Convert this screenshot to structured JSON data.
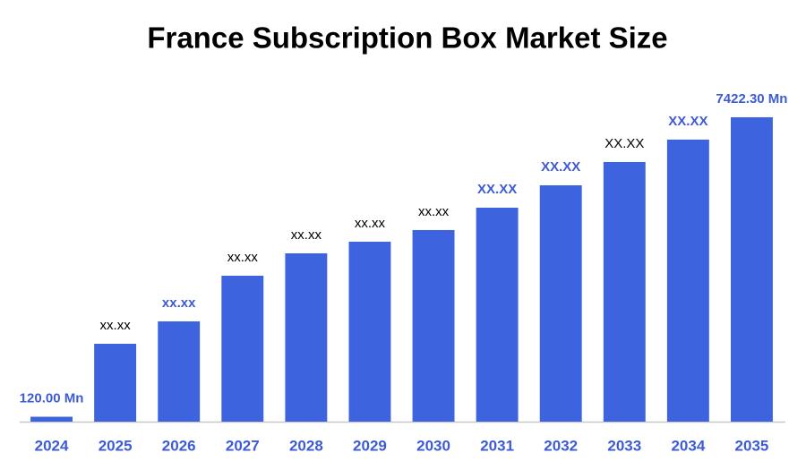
{
  "chart_data": {
    "type": "bar",
    "title": "France Subscription Box Market Size",
    "categories": [
      "2024",
      "2025",
      "2026",
      "2027",
      "2028",
      "2029",
      "2030",
      "2031",
      "2032",
      "2033",
      "2034",
      "2035"
    ],
    "values": [
      120.0,
      1899,
      2445,
      3558,
      4104,
      4388,
      4672,
      5217,
      5763,
      6331,
      6877,
      7422.3
    ],
    "value_labels": [
      "120.00 Mn",
      "xx.xx",
      "xx.xx",
      "xx.xx",
      "xx.xx",
      "xx.xx",
      "xx.xx",
      "XX.XX",
      "XX.XX",
      "XX.XX",
      "XX.XX",
      "7422.30 Mn"
    ],
    "value_label_colors": [
      "#3d5bd6",
      "#000000",
      "#3d5bd6",
      "#000000",
      "#000000",
      "#000000",
      "#000000",
      "#3d5bd6",
      "#3d5bd6",
      "#000000",
      "#3d5bd6",
      "#3d5bd6"
    ],
    "color": "#3d63df",
    "ylim": [
      0,
      8000
    ]
  }
}
